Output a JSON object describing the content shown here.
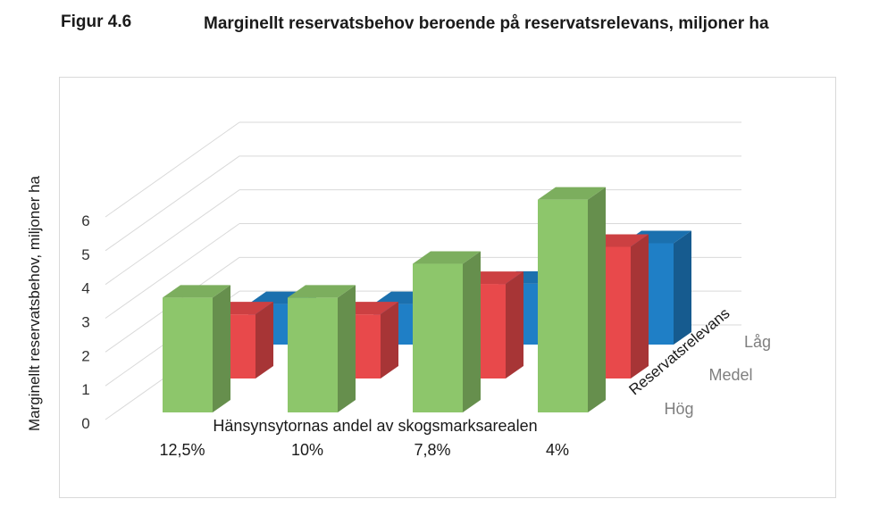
{
  "figure": {
    "label": "Figur 4.6",
    "title": "Marginellt reservatsbehov beroende på reservatsrelevans, miljoner ha"
  },
  "chart_data": {
    "type": "bar",
    "subtype": "3d-clustered",
    "title": "Marginellt reservatsbehov beroende på reservatsrelevans, miljoner ha",
    "xlabel": "Hänsynsytornas andel av skogsmarksarealen",
    "ylabel": "Marginellt reservatsbehov, miljoner ha",
    "zlabel": "Reservatsrelevans",
    "categories": [
      "12,5%",
      "10%",
      "7,8%",
      "4%"
    ],
    "yticks": [
      "0",
      "1",
      "2",
      "3",
      "4",
      "5",
      "6"
    ],
    "ylim": [
      0,
      6
    ],
    "grid": true,
    "series": [
      {
        "name": "Låg",
        "values": [
          3.4,
          3.4,
          4.4,
          6.3
        ],
        "color": "#8dc66b"
      },
      {
        "name": "Medel",
        "values": [
          1.9,
          1.9,
          2.8,
          3.9
        ],
        "color": "#e8494b"
      },
      {
        "name": "Hög",
        "values": [
          1.2,
          1.2,
          1.8,
          3.0
        ],
        "color": "#1f7fc6"
      }
    ]
  }
}
